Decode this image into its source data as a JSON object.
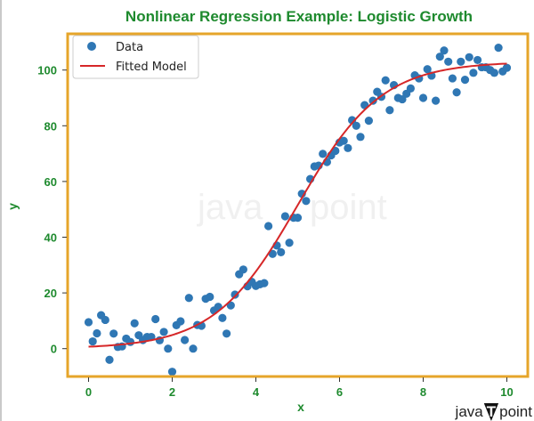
{
  "chart_data": {
    "type": "scatter",
    "title": "Nonlinear Regression Example: Logistic Growth",
    "xlabel": "x",
    "ylabel": "y",
    "xlim": [
      -0.5,
      10.5
    ],
    "ylim": [
      -10,
      113
    ],
    "xticks": [
      0,
      2,
      4,
      6,
      8,
      10
    ],
    "yticks": [
      0,
      20,
      40,
      60,
      80,
      100
    ],
    "grid": false,
    "legend_position": "top-left",
    "colors": {
      "title": "#1e8a2e",
      "frame": "#e6a52a",
      "data": "#2f77b4",
      "fit": "#d62728",
      "ticks": "#1e8a2e"
    },
    "series": [
      {
        "name": "Data",
        "kind": "scatter",
        "x": [
          0.0,
          0.1,
          0.2,
          0.3,
          0.4,
          0.5,
          0.6,
          0.7,
          0.8,
          0.9,
          1.0,
          1.1,
          1.2,
          1.3,
          1.4,
          1.5,
          1.6,
          1.7,
          1.8,
          1.9,
          2.0,
          2.1,
          2.2,
          2.3,
          2.4,
          2.5,
          2.6,
          2.7,
          2.8,
          2.9,
          3.0,
          3.1,
          3.2,
          3.3,
          3.4,
          3.5,
          3.6,
          3.7,
          3.8,
          3.9,
          4.0,
          4.1,
          4.2,
          4.3,
          4.4,
          4.5,
          4.6,
          4.7,
          4.8,
          4.9,
          5.0,
          5.1,
          5.2,
          5.3,
          5.4,
          5.5,
          5.6,
          5.7,
          5.8,
          5.9,
          6.0,
          6.1,
          6.2,
          6.3,
          6.4,
          6.5,
          6.6,
          6.7,
          6.8,
          6.9,
          7.0,
          7.1,
          7.2,
          7.3,
          7.4,
          7.5,
          7.6,
          7.7,
          7.8,
          7.9,
          8.0,
          8.1,
          8.2,
          8.3,
          8.4,
          8.5,
          8.6,
          8.7,
          8.8,
          8.9,
          9.0,
          9.1,
          9.2,
          9.3,
          9.4,
          9.5,
          9.6,
          9.7,
          9.8,
          9.9,
          10.0
        ],
        "y": [
          9.5,
          2.6,
          5.5,
          12.0,
          10.3,
          -4.0,
          5.4,
          0.6,
          0.8,
          3.6,
          2.4,
          9.1,
          4.8,
          3.1,
          4.2,
          4.2,
          10.6,
          3.0,
          6.0,
          0.0,
          -8.3,
          8.4,
          9.8,
          3.1,
          18.2,
          0.0,
          8.5,
          8.2,
          17.9,
          18.6,
          13.7,
          15.0,
          11.0,
          5.4,
          15.5,
          19.4,
          26.7,
          28.4,
          22.4,
          24.0,
          22.5,
          23.1,
          23.5,
          44.0,
          34.0,
          37.0,
          34.6,
          47.5,
          38.0,
          47.0,
          47.0,
          55.6,
          53.0,
          60.9,
          65.4,
          65.7,
          69.9,
          67.0,
          69.4,
          71.0,
          74.0,
          74.6,
          72.0,
          82.0,
          80.0,
          76.0,
          87.4,
          81.8,
          89.0,
          92.2,
          90.4,
          96.3,
          85.6,
          94.6,
          90.0,
          89.5,
          91.5,
          93.4,
          98.1,
          97.0,
          90.0,
          100.3,
          98.0,
          89.0,
          104.8,
          107.0,
          103.0,
          97.0,
          92.0,
          103.0,
          96.5,
          104.6,
          99.0,
          103.6,
          101.0,
          101.0,
          100.0,
          99.0,
          108.0,
          99.5,
          100.8
        ]
      },
      {
        "name": "Fitted Model",
        "kind": "line",
        "model": "logistic",
        "params": {
          "L": 103,
          "k": 1.0,
          "x0": 5.0
        }
      }
    ]
  },
  "watermark": {
    "text_left": "java",
    "text_right": "point",
    "logo_letter": "T"
  }
}
